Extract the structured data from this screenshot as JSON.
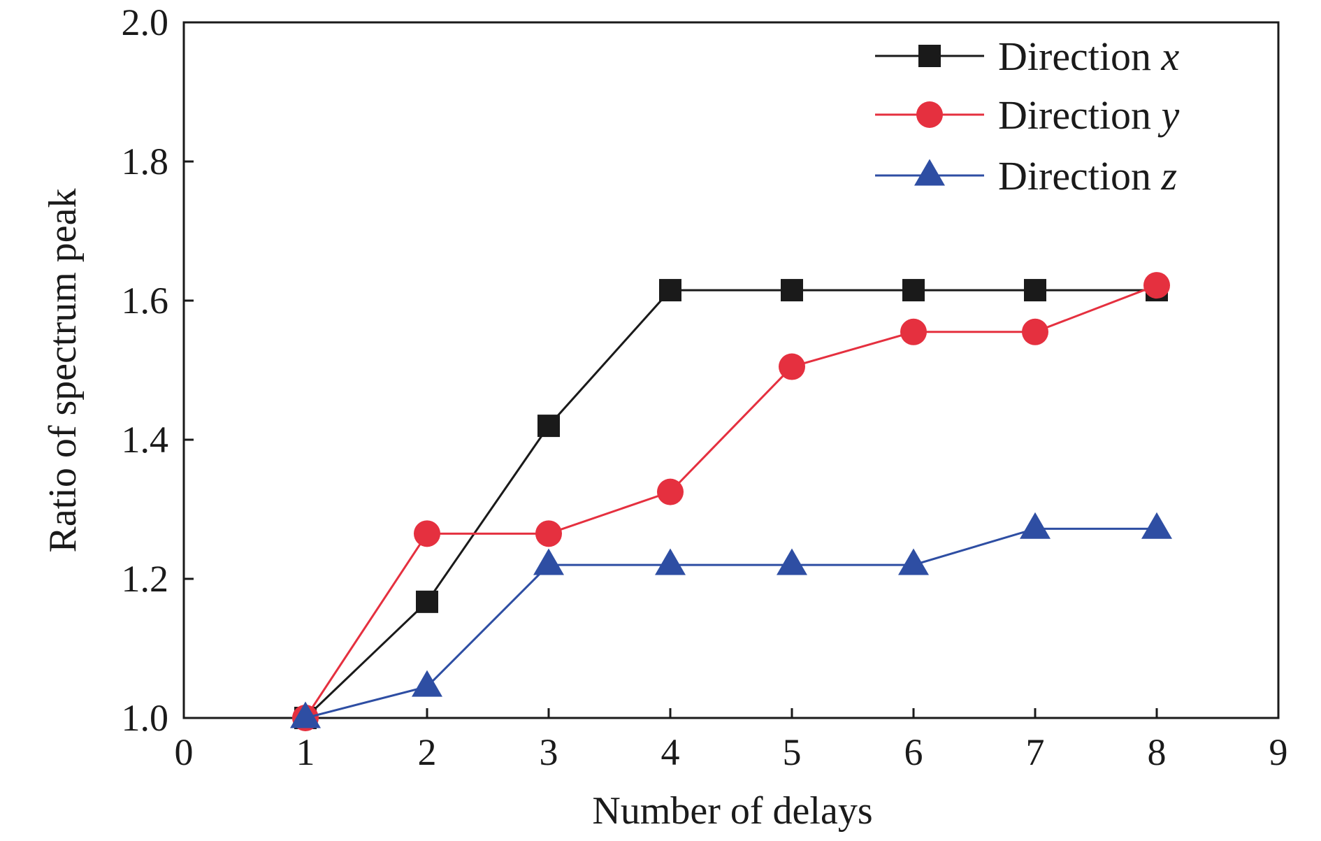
{
  "chart_data": {
    "type": "line",
    "xlabel": "Number of delays",
    "ylabel": "Ratio of spectrum peak",
    "xlim": [
      0,
      9
    ],
    "ylim": [
      1.0,
      2.0
    ],
    "x_ticks": [
      "0",
      "1",
      "2",
      "3",
      "4",
      "5",
      "6",
      "7",
      "8",
      "9"
    ],
    "y_ticks": [
      "1.0",
      "1.2",
      "1.4",
      "1.6",
      "1.8",
      "2.0"
    ],
    "grid": false,
    "legend_position": "top-right",
    "x": [
      1,
      2,
      3,
      4,
      5,
      6,
      7,
      8
    ],
    "series": [
      {
        "name": "Direction x",
        "name_prefix": "Direction",
        "name_var": "x",
        "marker": "square",
        "color": "#1a1a1a",
        "values": [
          1.0,
          1.167,
          1.42,
          1.615,
          1.615,
          1.615,
          1.615,
          1.615
        ]
      },
      {
        "name": "Direction y",
        "name_prefix": "Direction",
        "name_var": "y",
        "marker": "circle",
        "color": "#e5303f",
        "values": [
          1.0,
          1.265,
          1.265,
          1.325,
          1.505,
          1.555,
          1.555,
          1.622
        ]
      },
      {
        "name": "Direction z",
        "name_prefix": "Direction",
        "name_var": "z",
        "marker": "triangle",
        "color": "#2e4ea3",
        "values": [
          1.0,
          1.045,
          1.22,
          1.22,
          1.22,
          1.22,
          1.272,
          1.272
        ]
      }
    ]
  }
}
